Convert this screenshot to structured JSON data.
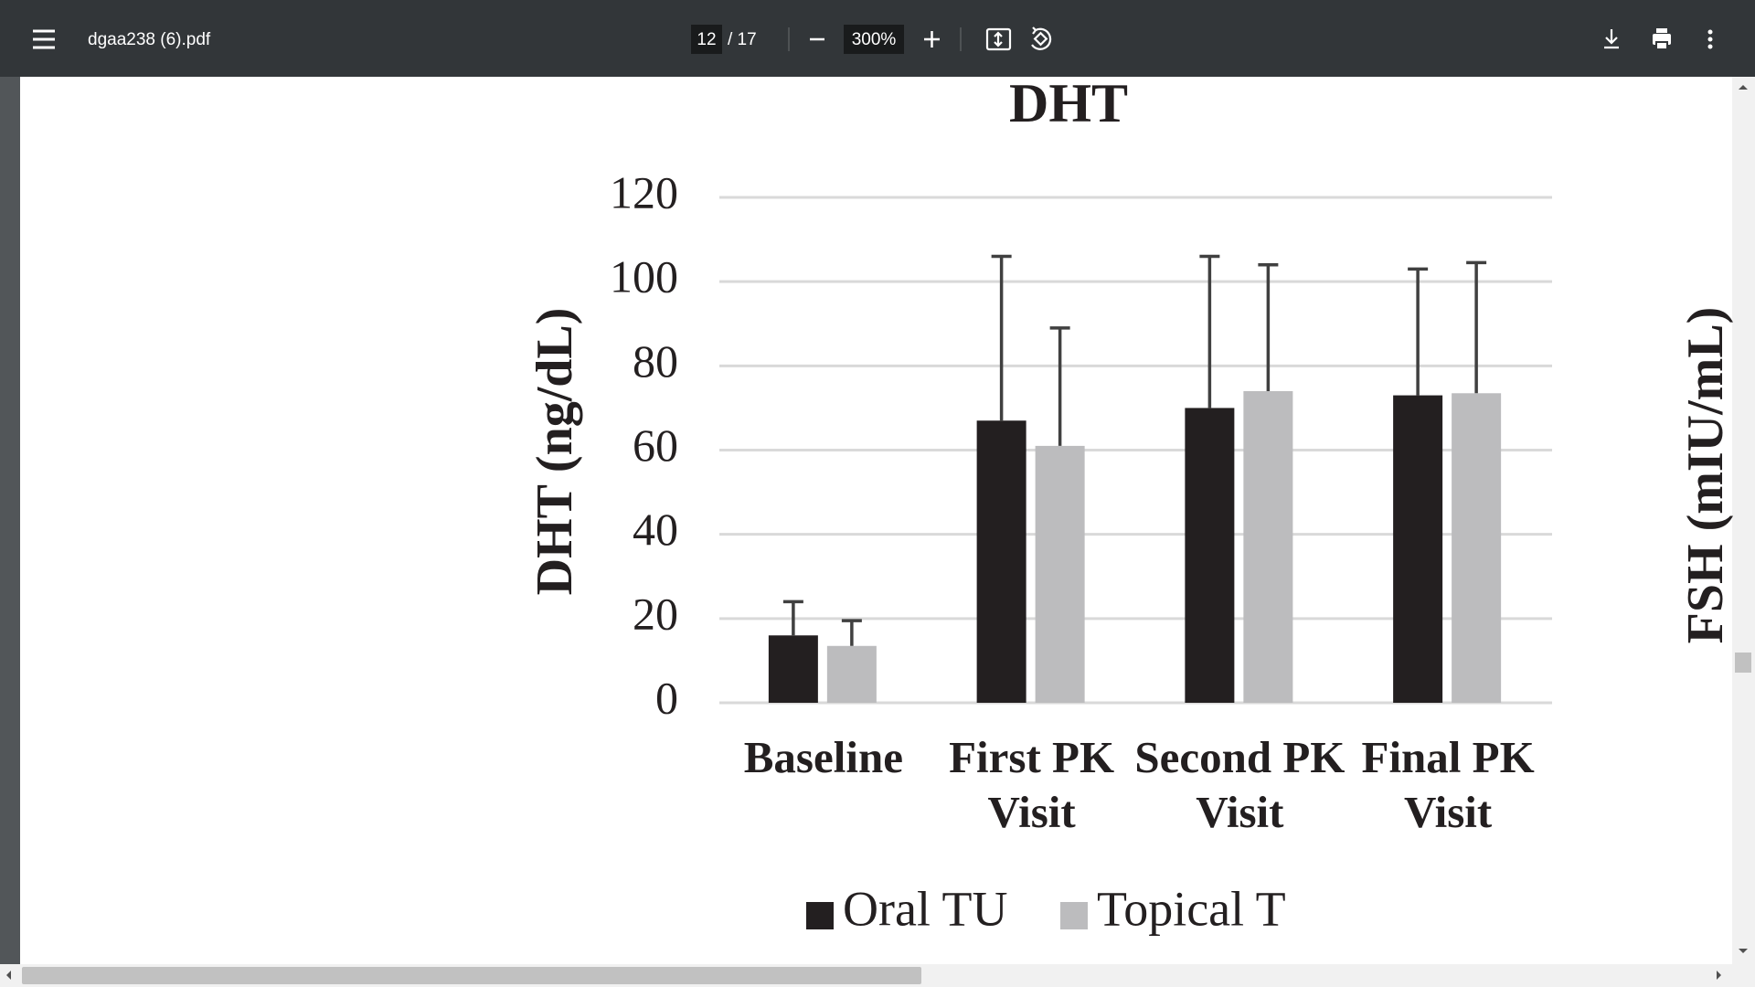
{
  "pdf_viewer": {
    "file_name": "dgaa238 (6).pdf",
    "page_current": "12",
    "page_total": "/ 17",
    "zoom": "300%"
  },
  "chart_data": {
    "type": "bar",
    "title": "DHT",
    "y_label": "DHT (ng/dL)",
    "categories": [
      "Baseline",
      "First PK Visit",
      "Second PK Visit",
      "Final PK Visit"
    ],
    "series": [
      {
        "name": "Oral TU",
        "color": "#231f20",
        "values": [
          16,
          67,
          70,
          73
        ],
        "errors": [
          8,
          39,
          36,
          30
        ]
      },
      {
        "name": "Topical T",
        "color": "#bcbcbe",
        "values": [
          13.5,
          61,
          74,
          73.5
        ],
        "errors": [
          6,
          28,
          30,
          31
        ]
      }
    ],
    "error_color": "#404040",
    "ylim": [
      0,
      120
    ],
    "yticks": [
      0,
      20,
      40,
      60,
      80,
      100,
      120
    ],
    "grid": true
  },
  "next_chart_y_label": "FSH (mIU/mL)"
}
